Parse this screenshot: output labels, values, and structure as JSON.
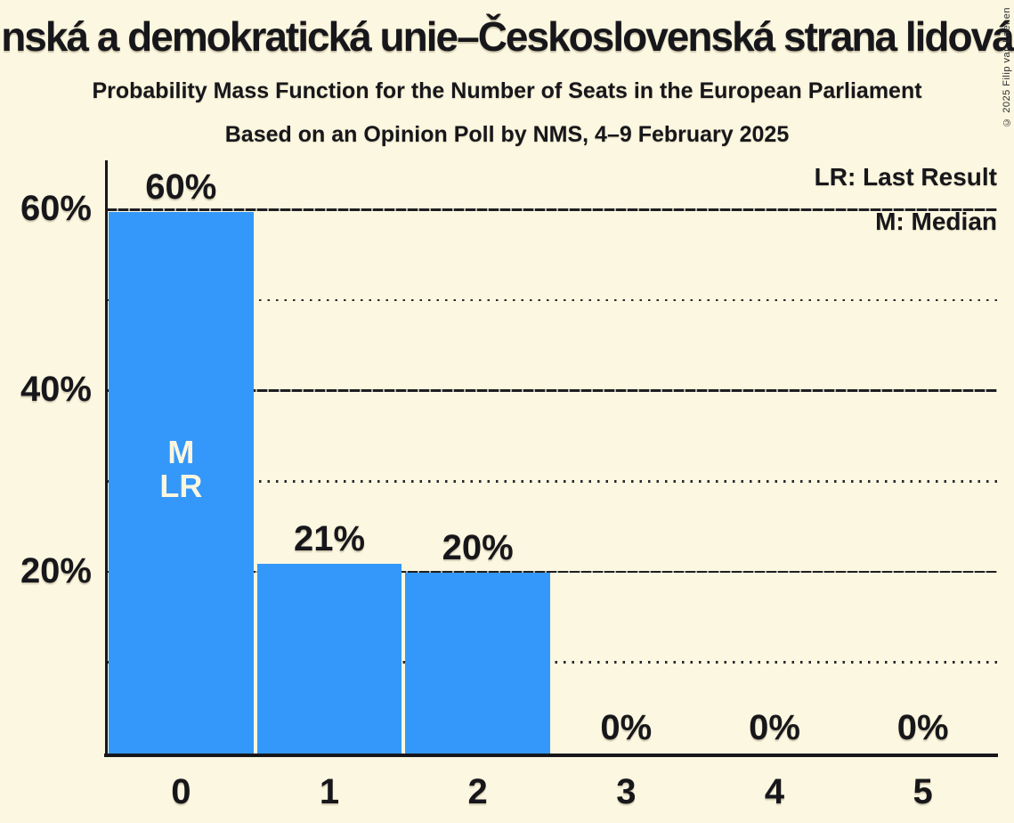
{
  "header": {
    "title": "nská a demokratická unie–Československá strana lidová",
    "subtitle": "Probability Mass Function for the Number of Seats in the European Parliament",
    "poll_line": "Based on an Opinion Poll by NMS, 4–9 February 2025",
    "copyright": "© 2025 Filip van Laenen"
  },
  "legend": {
    "lr_label": "LR: Last Result",
    "m_label": "M: Median"
  },
  "chart_data": {
    "type": "bar",
    "title": "Probability Mass Function for the Number of Seats in the European Parliament",
    "categories": [
      "0",
      "1",
      "2",
      "3",
      "4",
      "5"
    ],
    "values": [
      60,
      21,
      20,
      0,
      0,
      0
    ],
    "value_labels": [
      "60%",
      "21%",
      "20%",
      "0%",
      "0%",
      "0%"
    ],
    "xlabel": "",
    "ylabel": "",
    "ylim": [
      0,
      66
    ],
    "ytick_major": [
      20,
      40,
      60
    ],
    "ytick_major_labels": [
      "20%",
      "40%",
      "60%"
    ],
    "ytick_minor": [
      10,
      30,
      50
    ],
    "grid": "horizontal, solid-dash on majors, dotted on minors",
    "legend_position": "top-right",
    "annotations": [
      {
        "category": "0",
        "lines": [
          "M",
          "LR"
        ],
        "meaning": "Median and Last Result at 0 seats"
      }
    ],
    "colors": {
      "bar": "#3498FA",
      "background": "#FCF7E0",
      "text": "#17171B",
      "annotation_text": "#FBF6DF"
    }
  }
}
